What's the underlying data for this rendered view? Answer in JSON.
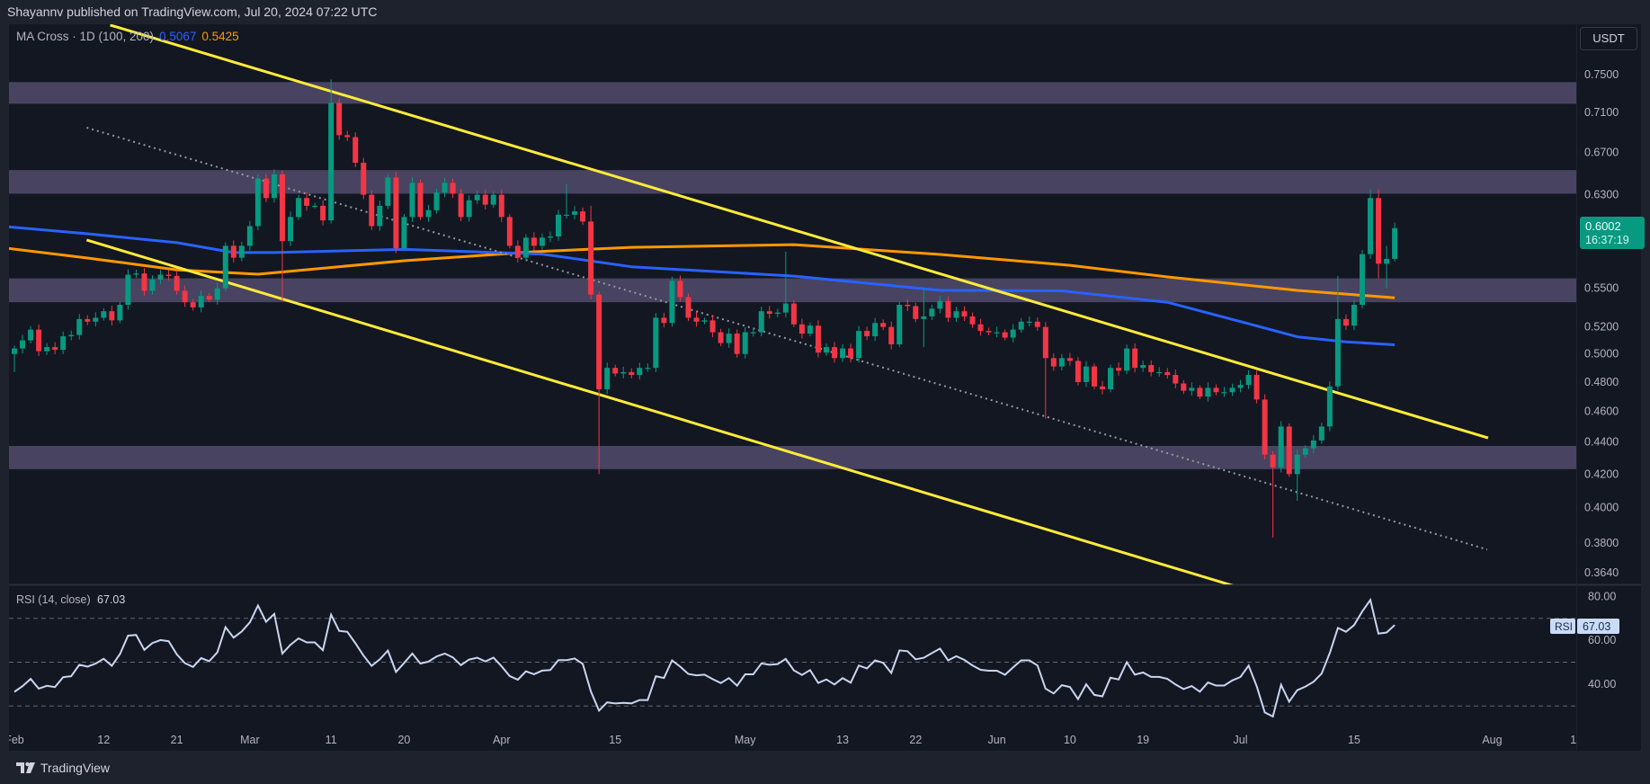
{
  "header": {
    "publish_line": "Shayannv published on TradingView.com, Jul 20, 2024 07:22 UTC"
  },
  "legend": {
    "indicator": "MA Cross · 1D (100, 200)",
    "ma100_value": "0.5067",
    "ma200_value": "0.5425"
  },
  "currency_button": "USDT",
  "price_badge": {
    "price": "0.6002",
    "countdown": "16:37:19"
  },
  "rsi_legend": {
    "label": "RSI (14, close)",
    "value": "67.03",
    "badge_name": "RSI"
  },
  "footer": {
    "brand": "TradingView"
  },
  "colors": {
    "up": "#089981",
    "down": "#f23645",
    "ma100": "#2962ff",
    "ma200": "#ff9800",
    "trendline": "#ffeb3b",
    "zone": "#4f4868",
    "rsi": "#c8d6f0",
    "background": "#131722"
  },
  "chart_data": {
    "type": "candlestick",
    "symbol_interval": "1D",
    "start_date": "Feb 1, 2024",
    "end_date": "Jul 20, 2024",
    "scale": "log",
    "ylim": [
      0.364,
      0.75
    ],
    "first_open": 0.5,
    "close": [
      0.504,
      0.51,
      0.518,
      0.502,
      0.505,
      0.503,
      0.513,
      0.514,
      0.526,
      0.524,
      0.527,
      0.532,
      0.525,
      0.537,
      0.561,
      0.562,
      0.548,
      0.557,
      0.561,
      0.56,
      0.548,
      0.539,
      0.535,
      0.544,
      0.541,
      0.55,
      0.585,
      0.575,
      0.585,
      0.602,
      0.645,
      0.627,
      0.649,
      0.589,
      0.61,
      0.627,
      0.62,
      0.62,
      0.607,
      0.72,
      0.687,
      0.685,
      0.66,
      0.63,
      0.602,
      0.62,
      0.646,
      0.583,
      0.61,
      0.641,
      0.61,
      0.616,
      0.632,
      0.641,
      0.631,
      0.61,
      0.625,
      0.63,
      0.621,
      0.63,
      0.61,
      0.585,
      0.575,
      0.592,
      0.585,
      0.592,
      0.593,
      0.612,
      0.612,
      0.615,
      0.606,
      0.545,
      0.475,
      0.49,
      0.486,
      0.487,
      0.485,
      0.49,
      0.49,
      0.527,
      0.523,
      0.556,
      0.543,
      0.527,
      0.524,
      0.525,
      0.516,
      0.508,
      0.515,
      0.5,
      0.516,
      0.516,
      0.532,
      0.53,
      0.531,
      0.538,
      0.522,
      0.515,
      0.521,
      0.501,
      0.505,
      0.497,
      0.504,
      0.497,
      0.517,
      0.513,
      0.523,
      0.52,
      0.507,
      0.537,
      0.536,
      0.526,
      0.528,
      0.534,
      0.54,
      0.527,
      0.532,
      0.528,
      0.522,
      0.517,
      0.516,
      0.516,
      0.512,
      0.518,
      0.524,
      0.524,
      0.52,
      0.497,
      0.491,
      0.497,
      0.495,
      0.48,
      0.491,
      0.477,
      0.475,
      0.49,
      0.488,
      0.504,
      0.49,
      0.492,
      0.487,
      0.487,
      0.485,
      0.479,
      0.474,
      0.476,
      0.47,
      0.476,
      0.473,
      0.473,
      0.476,
      0.478,
      0.485,
      0.468,
      0.432,
      0.424,
      0.45,
      0.42,
      0.432,
      0.436,
      0.441,
      0.45,
      0.477,
      0.526,
      0.521,
      0.537,
      0.578,
      0.627,
      0.57,
      0.574,
      0.6002
    ],
    "wicks": [
      {
        "i": 0,
        "low": 0.487
      },
      {
        "i": 33,
        "low": 0.54
      },
      {
        "i": 39,
        "high": 0.745
      },
      {
        "i": 40,
        "high": 0.725
      },
      {
        "i": 68,
        "high": 0.64
      },
      {
        "i": 71,
        "high": 0.62
      },
      {
        "i": 72,
        "low": 0.42
      },
      {
        "i": 95,
        "high": 0.58
      },
      {
        "i": 112,
        "high": 0.55,
        "low": 0.505
      },
      {
        "i": 127,
        "low": 0.455
      },
      {
        "i": 155,
        "low": 0.383
      },
      {
        "i": 158,
        "low": 0.404
      },
      {
        "i": 163,
        "high": 0.56
      },
      {
        "i": 167,
        "high": 0.635
      },
      {
        "i": 168,
        "high": 0.635,
        "low": 0.558
      },
      {
        "i": 169,
        "high": 0.585,
        "low": 0.55
      },
      {
        "i": 170,
        "high": 0.605
      }
    ],
    "ma100": [
      [
        -1,
        0.6015
      ],
      [
        9,
        0.5953
      ],
      [
        20,
        0.5877
      ],
      [
        27,
        0.5793
      ],
      [
        32,
        0.5793
      ],
      [
        48,
        0.582
      ],
      [
        65,
        0.578
      ],
      [
        76,
        0.5675
      ],
      [
        96,
        0.5598
      ],
      [
        114,
        0.5484
      ],
      [
        129,
        0.548
      ],
      [
        142,
        0.539
      ],
      [
        152,
        0.5224
      ],
      [
        158,
        0.5126
      ],
      [
        164,
        0.5089
      ],
      [
        170,
        0.5067
      ]
    ],
    "ma200": [
      [
        -1,
        0.583
      ],
      [
        9,
        0.5747
      ],
      [
        20,
        0.565
      ],
      [
        30,
        0.5614
      ],
      [
        48,
        0.5725
      ],
      [
        64,
        0.58
      ],
      [
        76,
        0.5837
      ],
      [
        96,
        0.586
      ],
      [
        114,
        0.5777
      ],
      [
        130,
        0.5687
      ],
      [
        142,
        0.5592
      ],
      [
        158,
        0.5483
      ],
      [
        170,
        0.5425
      ]
    ],
    "zones": [
      [
        0.719,
        0.742
      ],
      [
        0.631,
        0.653
      ],
      [
        0.539,
        0.558
      ],
      [
        0.423,
        0.4375
      ]
    ],
    "trendlines": [
      {
        "name": "upper-channel",
        "from": [
          11.8,
          0.806
        ],
        "to": [
          181.5,
          0.4426
        ],
        "style": "solid"
      },
      {
        "name": "lower-channel",
        "from": [
          8.9,
          0.59
        ],
        "to": [
          151,
          0.356
        ],
        "style": "solid"
      },
      {
        "name": "mid-channel",
        "from": [
          8.9,
          0.6945
        ],
        "to": [
          181.4,
          0.3764
        ],
        "style": "dotted"
      }
    ],
    "price_ticks": [
      {
        "v": 0.75,
        "label": "0.7500"
      },
      {
        "v": 0.71,
        "label": "0.7100"
      },
      {
        "v": 0.67,
        "label": "0.6700"
      },
      {
        "v": 0.63,
        "label": "0.6300"
      },
      {
        "v": 0.55,
        "label": "0.5500"
      },
      {
        "v": 0.52,
        "label": "0.5200"
      },
      {
        "v": 0.5,
        "label": "0.5000"
      },
      {
        "v": 0.48,
        "label": "0.4800"
      },
      {
        "v": 0.46,
        "label": "0.4600"
      },
      {
        "v": 0.44,
        "label": "0.4400"
      },
      {
        "v": 0.42,
        "label": "0.4200"
      },
      {
        "v": 0.4,
        "label": "0.4000"
      },
      {
        "v": 0.38,
        "label": "0.3800"
      },
      {
        "v": 0.364,
        "label": "0.3640"
      }
    ],
    "time_ticks": [
      {
        "i": 0,
        "label": "Feb"
      },
      {
        "i": 11,
        "label": "12"
      },
      {
        "i": 20,
        "label": "21"
      },
      {
        "i": 29,
        "label": "Mar"
      },
      {
        "i": 39,
        "label": "11"
      },
      {
        "i": 48,
        "label": "20"
      },
      {
        "i": 60,
        "label": "Apr"
      },
      {
        "i": 74,
        "label": "15"
      },
      {
        "i": 90,
        "label": "May"
      },
      {
        "i": 102,
        "label": "13"
      },
      {
        "i": 111,
        "label": "22"
      },
      {
        "i": 121,
        "label": "Jun"
      },
      {
        "i": 130,
        "label": "10"
      },
      {
        "i": 139,
        "label": "19"
      },
      {
        "i": 151,
        "label": "Jul"
      },
      {
        "i": 165,
        "label": "15"
      },
      {
        "i": 182,
        "label": "Aug"
      },
      {
        "i": 192,
        "label": "1"
      }
    ],
    "rsi": {
      "period": 14,
      "last": 67.03,
      "levels": [
        70,
        50,
        30
      ],
      "ticks": [
        {
          "v": 80,
          "label": "80.00"
        },
        {
          "v": 60,
          "label": "60.00"
        },
        {
          "v": 40,
          "label": "40.00"
        }
      ]
    }
  }
}
